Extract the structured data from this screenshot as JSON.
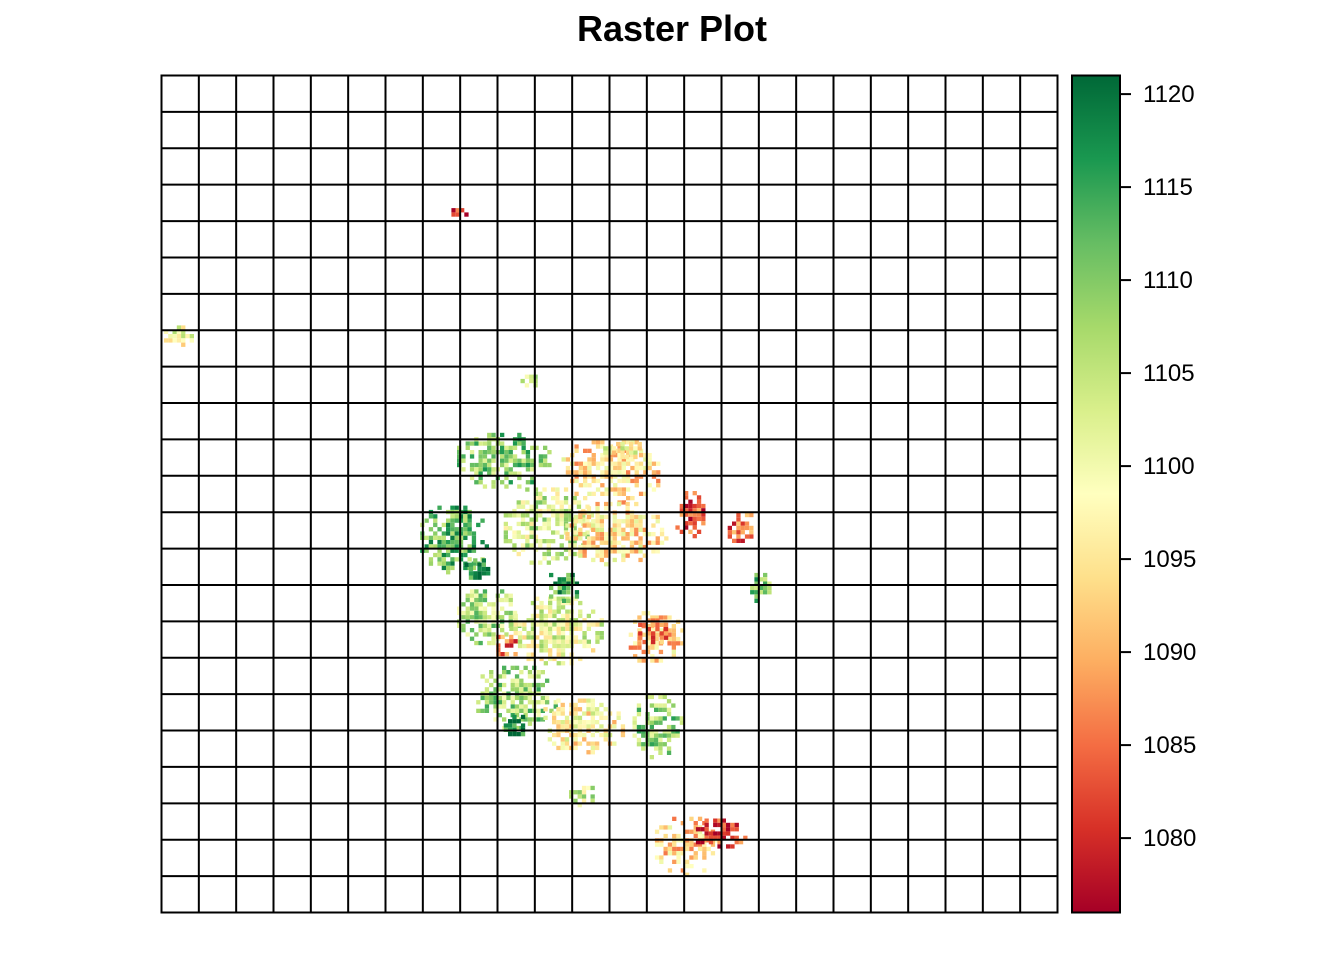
{
  "chart_data": {
    "type": "heatmap",
    "title": "Raster Plot",
    "xlabel": "",
    "ylabel": "",
    "grid": true,
    "grid_columns": 24,
    "grid_rows": 23,
    "value_range": [
      1076,
      1121
    ],
    "legend": {
      "type": "colorbar",
      "placement": "right",
      "ticks": [
        1080,
        1085,
        1090,
        1095,
        1100,
        1105,
        1110,
        1115,
        1120
      ],
      "colors": [
        "#a50026",
        "#d73027",
        "#f46d43",
        "#fdae61",
        "#fee08b",
        "#ffffbf",
        "#d9ef8b",
        "#a6d96a",
        "#66bd63",
        "#1a9850",
        "#006837"
      ]
    },
    "blobs": [
      {
        "col": 7.9,
        "row": 3.7,
        "w": 0.5,
        "h": 0.35,
        "value": 1079
      },
      {
        "col": 0.4,
        "row": 7.1,
        "w": 0.9,
        "h": 0.7,
        "value": 1100
      },
      {
        "col": 9.8,
        "row": 8.3,
        "w": 0.6,
        "h": 0.4,
        "value": 1104
      },
      {
        "col": 9.1,
        "row": 10.5,
        "w": 2.6,
        "h": 1.6,
        "value": 1109
      },
      {
        "col": 12.0,
        "row": 10.8,
        "w": 2.8,
        "h": 1.8,
        "value": 1094
      },
      {
        "col": 7.7,
        "row": 12.7,
        "w": 2.0,
        "h": 2.0,
        "value": 1112
      },
      {
        "col": 10.3,
        "row": 12.3,
        "w": 2.5,
        "h": 2.2,
        "value": 1103
      },
      {
        "col": 12.1,
        "row": 12.5,
        "w": 2.8,
        "h": 1.8,
        "value": 1095
      },
      {
        "col": 8.7,
        "row": 14.8,
        "w": 1.8,
        "h": 1.6,
        "value": 1106
      },
      {
        "col": 10.5,
        "row": 15.2,
        "w": 2.6,
        "h": 2.0,
        "value": 1101
      },
      {
        "col": 13.2,
        "row": 15.4,
        "w": 1.6,
        "h": 1.6,
        "value": 1093
      },
      {
        "col": 9.4,
        "row": 17.0,
        "w": 2.4,
        "h": 1.8,
        "value": 1107
      },
      {
        "col": 11.2,
        "row": 17.8,
        "w": 2.4,
        "h": 1.6,
        "value": 1097
      },
      {
        "col": 13.2,
        "row": 17.8,
        "w": 1.4,
        "h": 1.8,
        "value": 1108
      },
      {
        "col": 11.2,
        "row": 19.7,
        "w": 0.8,
        "h": 0.6,
        "value": 1104
      },
      {
        "col": 14.0,
        "row": 21.1,
        "w": 1.8,
        "h": 1.7,
        "value": 1093
      },
      {
        "col": 14.9,
        "row": 20.8,
        "w": 1.4,
        "h": 1.0,
        "value": 1082
      },
      {
        "col": 14.1,
        "row": 12.0,
        "w": 0.9,
        "h": 1.4,
        "value": 1083
      },
      {
        "col": 9.2,
        "row": 15.6,
        "w": 0.7,
        "h": 0.7,
        "value": 1085
      },
      {
        "col": 13.1,
        "row": 15.2,
        "w": 0.9,
        "h": 0.8,
        "value": 1087
      },
      {
        "col": 15.5,
        "row": 12.4,
        "w": 0.9,
        "h": 1.0,
        "value": 1085
      },
      {
        "col": 10.7,
        "row": 14.0,
        "w": 1.1,
        "h": 0.9,
        "value": 1115
      },
      {
        "col": 8.4,
        "row": 13.5,
        "w": 0.8,
        "h": 0.7,
        "value": 1118
      },
      {
        "col": 9.4,
        "row": 17.8,
        "w": 0.7,
        "h": 0.7,
        "value": 1119
      },
      {
        "col": 12.4,
        "row": 10.2,
        "w": 1.6,
        "h": 0.5,
        "value": 1099
      },
      {
        "col": 16.0,
        "row": 14.0,
        "w": 0.7,
        "h": 0.9,
        "value": 1110
      }
    ]
  }
}
